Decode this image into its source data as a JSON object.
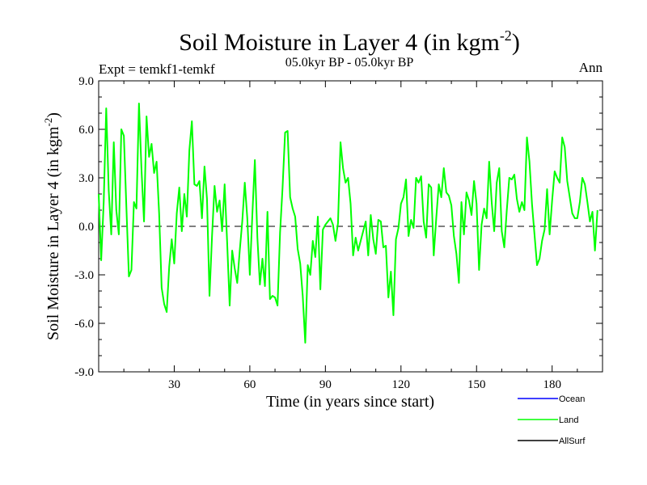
{
  "chart_data": {
    "type": "line",
    "title": "Soil Moisture in Layer 4 (in kgm",
    "title_sup": "-2",
    "title_close": ")",
    "subtitle": "05.0kyr BP - 05.0kyr BP",
    "left_label": "Expt = temkf1-temkf",
    "right_label": "Ann",
    "xlabel": "Time (in years since start)",
    "ylabel": "Soil Moisture in Layer 4 (in kgm",
    "ylabel_sup": "-2",
    "ylabel_close": ")",
    "xlim": [
      0,
      200
    ],
    "ylim": [
      -9,
      9
    ],
    "x_ticks": [
      30,
      60,
      90,
      120,
      150,
      180
    ],
    "x_tick_labels": [
      "30",
      "60",
      "90",
      "120",
      "150",
      "180"
    ],
    "y_ticks": [
      -9,
      -6,
      -3,
      0,
      3,
      6,
      9
    ],
    "y_tick_labels": [
      "-9.0",
      "-6.0",
      "-3.0",
      "0.0",
      "3.0",
      "6.0",
      "9.0"
    ],
    "reference_line": 0,
    "legend": [
      {
        "name": "Ocean",
        "color": "#0000ff"
      },
      {
        "name": "Land",
        "color": "#00ff00"
      },
      {
        "name": "AllSurf",
        "color": "#000000"
      }
    ],
    "series": [
      {
        "name": "Land",
        "color": "#00ff00",
        "x_start": 0,
        "x_step": 1,
        "values": [
          2.0,
          -2.1,
          1.5,
          7.3,
          2.2,
          -0.5,
          5.2,
          1.0,
          -0.5,
          6.0,
          5.6,
          1.2,
          -3.1,
          -2.7,
          1.5,
          1.1,
          7.6,
          3.5,
          0.3,
          6.8,
          4.3,
          5.1,
          3.3,
          4.0,
          0.8,
          -3.8,
          -4.8,
          -5.3,
          -2.5,
          -0.8,
          -2.3,
          0.8,
          2.4,
          -0.3,
          2.0,
          0.6,
          4.7,
          6.5,
          2.6,
          2.5,
          2.8,
          0.5,
          3.7,
          1.7,
          -4.3,
          -0.6,
          2.5,
          0.9,
          1.6,
          -0.3,
          2.6,
          -1.0,
          -4.9,
          -1.5,
          -2.6,
          -3.5,
          -1.5,
          0.3,
          2.7,
          0.5,
          -3.0,
          0.7,
          4.1,
          -0.7,
          -3.6,
          -2.0,
          -3.7,
          0.9,
          -4.5,
          -4.3,
          -4.4,
          -4.9,
          -0.4,
          2.4,
          5.8,
          5.9,
          1.8,
          1.1,
          0.6,
          -1.4,
          -2.3,
          -4.3,
          -7.2,
          -2.4,
          -3.0,
          -0.9,
          -1.9,
          0.6,
          -3.9,
          -0.2,
          0.1,
          0.3,
          0.5,
          0.1,
          -0.9,
          0.2,
          5.2,
          3.6,
          2.7,
          3.0,
          1.4,
          -1.8,
          -0.7,
          -1.5,
          -0.9,
          -0.3,
          0.3,
          -1.8,
          0.7,
          -0.8,
          -1.7,
          0.4,
          0.3,
          -1.3,
          -1.2,
          -4.4,
          -2.8,
          -5.5,
          -0.8,
          -0.1,
          1.4,
          1.8,
          2.9,
          -0.6,
          0.4,
          -0.1,
          3.0,
          2.7,
          3.1,
          0.3,
          -0.7,
          2.6,
          2.4,
          -1.8,
          0.5,
          2.6,
          1.8,
          3.6,
          2.1,
          1.9,
          1.3,
          -0.6,
          -1.7,
          -3.5,
          1.5,
          -0.5,
          2.1,
          1.6,
          0.7,
          2.8,
          1.4,
          -2.7,
          0.1,
          1.1,
          0.5,
          4.0,
          1.5,
          -0.3,
          2.7,
          3.6,
          -0.3,
          -1.3,
          1.0,
          3.0,
          2.9,
          3.2,
          1.7,
          0.9,
          1.5,
          1.0,
          5.5,
          4.0,
          1.4,
          -0.5,
          -2.4,
          -2.0,
          -0.9,
          -0.2,
          2.3,
          -0.5,
          1.6,
          3.4,
          3.0,
          2.7,
          5.5,
          4.9,
          2.8,
          1.8,
          0.8,
          0.5,
          0.5,
          1.5,
          3.0,
          2.6,
          1.5,
          0.3,
          0.9,
          -1.5,
          1.0
        ]
      }
    ]
  }
}
